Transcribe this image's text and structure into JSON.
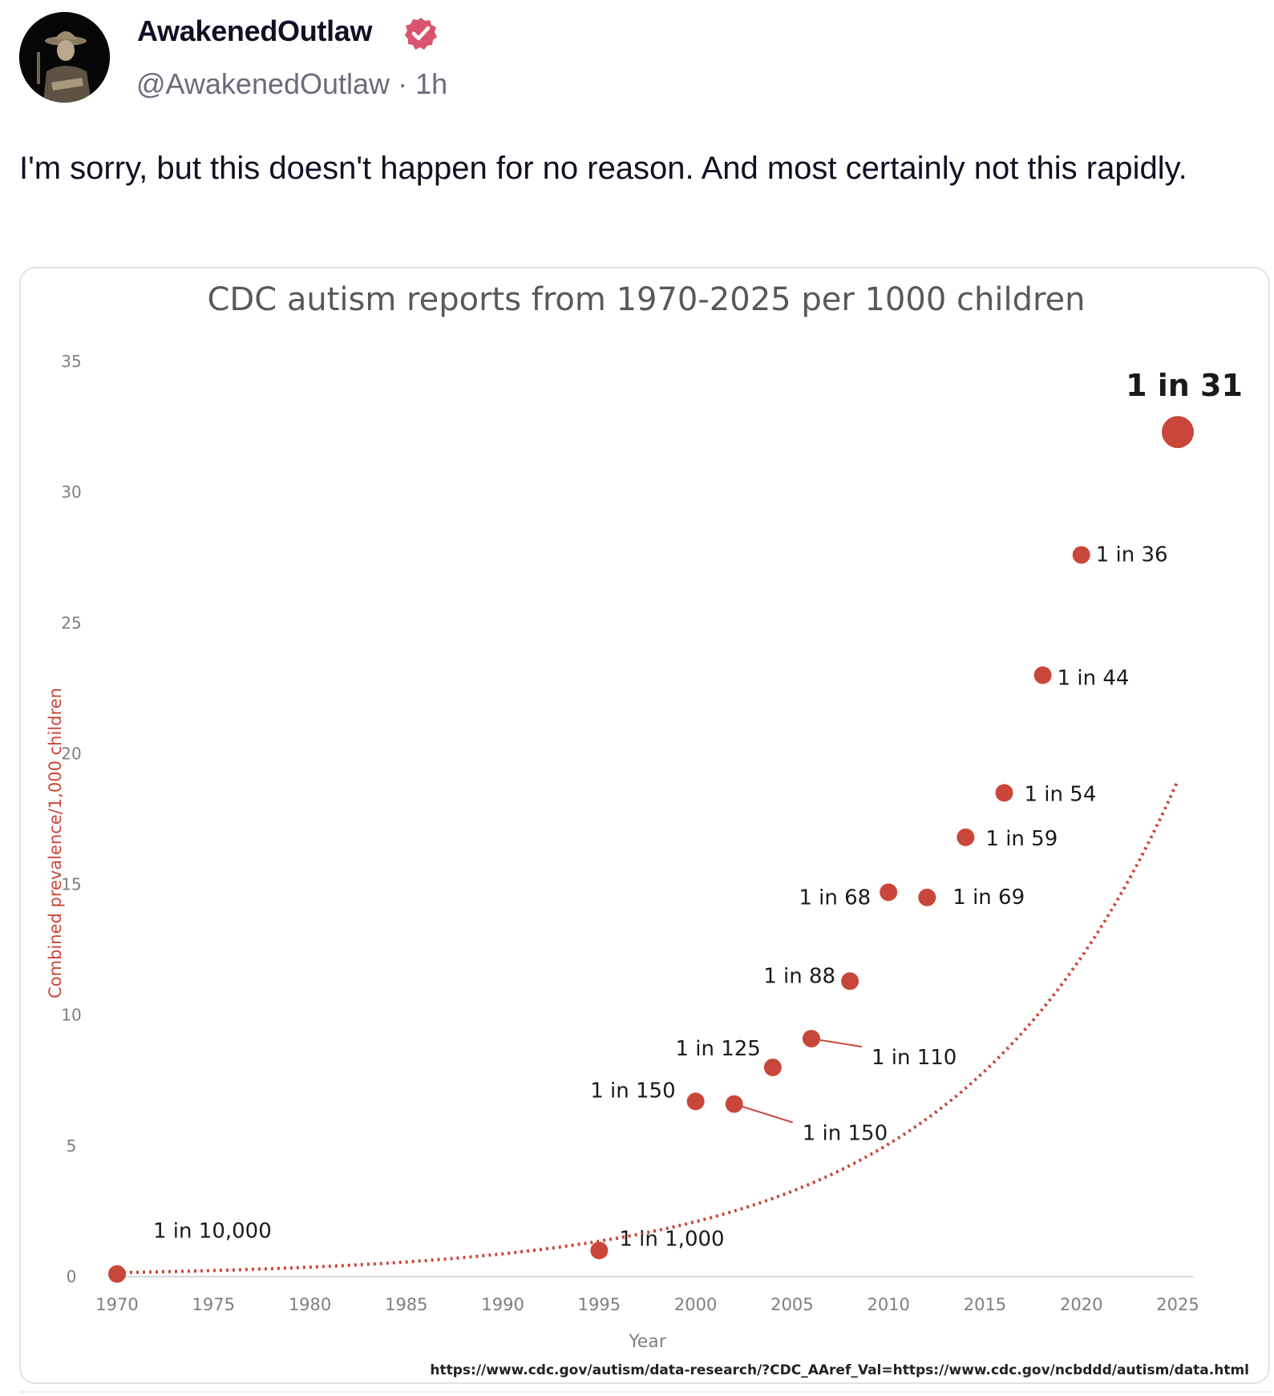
{
  "post": {
    "author_name": "AwakenedOutlaw",
    "verified": true,
    "handle": "@AwakenedOutlaw",
    "separator": "·",
    "time_ago": "1h",
    "text": "I'm sorry, but this doesn't happen for no reason.  And most certainly not this rapidly.",
    "avatar_icon": "avatar-cowboy-portrait",
    "badge_icon": "verified-badge-icon",
    "badge_color": "#d9546f"
  },
  "chart_data": {
    "type": "scatter",
    "title": "CDC autism reports from 1970-2025 per 1000 children",
    "xlabel": "Year",
    "ylabel": "Combined prevalence/1,000 children",
    "source_note": "https://www.cdc.gov/autism/data-research/?CDC_AAref_Val=https://www.cdc.gov/ncbddd/autism/data.html",
    "xlim": [
      1970,
      2025
    ],
    "ylim": [
      0,
      35
    ],
    "x_ticks": [
      "1970",
      "1975",
      "1980",
      "1985",
      "1990",
      "1995",
      "2000",
      "2005",
      "2010",
      "2015",
      "2020",
      "2025"
    ],
    "y_ticks": [
      "0",
      "5",
      "10",
      "15",
      "20",
      "25",
      "30",
      "35"
    ],
    "grid": false,
    "legend": "none",
    "trendline": "exponential, dotted",
    "point_color": "#c9473a",
    "points": [
      {
        "x": 1970,
        "y": 0.1,
        "label": "1 in 10,000"
      },
      {
        "x": 1995,
        "y": 1.0,
        "label": "1 in 1,000"
      },
      {
        "x": 2000,
        "y": 6.7,
        "label": "1 in 150"
      },
      {
        "x": 2002,
        "y": 6.6,
        "label": "1 in 150"
      },
      {
        "x": 2004,
        "y": 8.0,
        "label": "1 in 125"
      },
      {
        "x": 2006,
        "y": 9.1,
        "label": "1 in 110"
      },
      {
        "x": 2008,
        "y": 11.3,
        "label": "1 in 88"
      },
      {
        "x": 2010,
        "y": 14.7,
        "label": "1 in 68"
      },
      {
        "x": 2012,
        "y": 14.5,
        "label": "1 in 69"
      },
      {
        "x": 2014,
        "y": 16.8,
        "label": "1 in 59"
      },
      {
        "x": 2016,
        "y": 18.5,
        "label": "1 in 54"
      },
      {
        "x": 2018,
        "y": 23.0,
        "label": "1 in 44"
      },
      {
        "x": 2020,
        "y": 27.6,
        "label": "1 in 36"
      },
      {
        "x": 2025,
        "y": 32.3,
        "label": "1 in 31"
      }
    ]
  }
}
